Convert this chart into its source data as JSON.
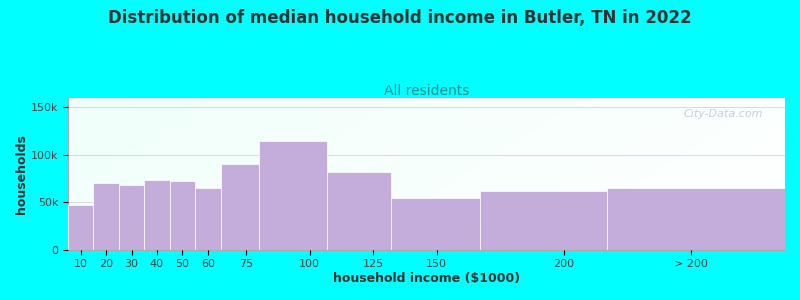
{
  "title": "Distribution of median household income in Butler, TN in 2022",
  "subtitle": "All residents",
  "xlabel": "household income ($1000)",
  "ylabel": "households",
  "background_color": "#00FFFF",
  "bar_color": "#C4ADDA",
  "bar_edge_color": "#FFFFFF",
  "categories": [
    "10",
    "20",
    "30",
    "40",
    "50",
    "60",
    "75",
    "100",
    "125",
    "150",
    "200",
    "> 200"
  ],
  "values": [
    47000,
    70000,
    68000,
    73000,
    72000,
    65000,
    90000,
    115000,
    82000,
    54000,
    62000,
    65000
  ],
  "left_edges": [
    5,
    15,
    25,
    35,
    45,
    55,
    65,
    80,
    107,
    132,
    167,
    217
  ],
  "bar_widths": [
    10,
    10,
    10,
    10,
    10,
    10,
    15,
    27,
    25,
    35,
    50,
    70
  ],
  "tick_positions": [
    10,
    20,
    30,
    40,
    50,
    60,
    75,
    100,
    125,
    150,
    200,
    250
  ],
  "xlim": [
    5,
    287
  ],
  "ylim": [
    0,
    160000
  ],
  "yticks": [
    0,
    50000,
    100000,
    150000
  ],
  "ytick_labels": [
    "0",
    "50k",
    "100k",
    "150k"
  ],
  "title_fontsize": 12,
  "subtitle_fontsize": 10,
  "axis_label_fontsize": 9,
  "tick_fontsize": 8,
  "watermark": "City-Data.com"
}
